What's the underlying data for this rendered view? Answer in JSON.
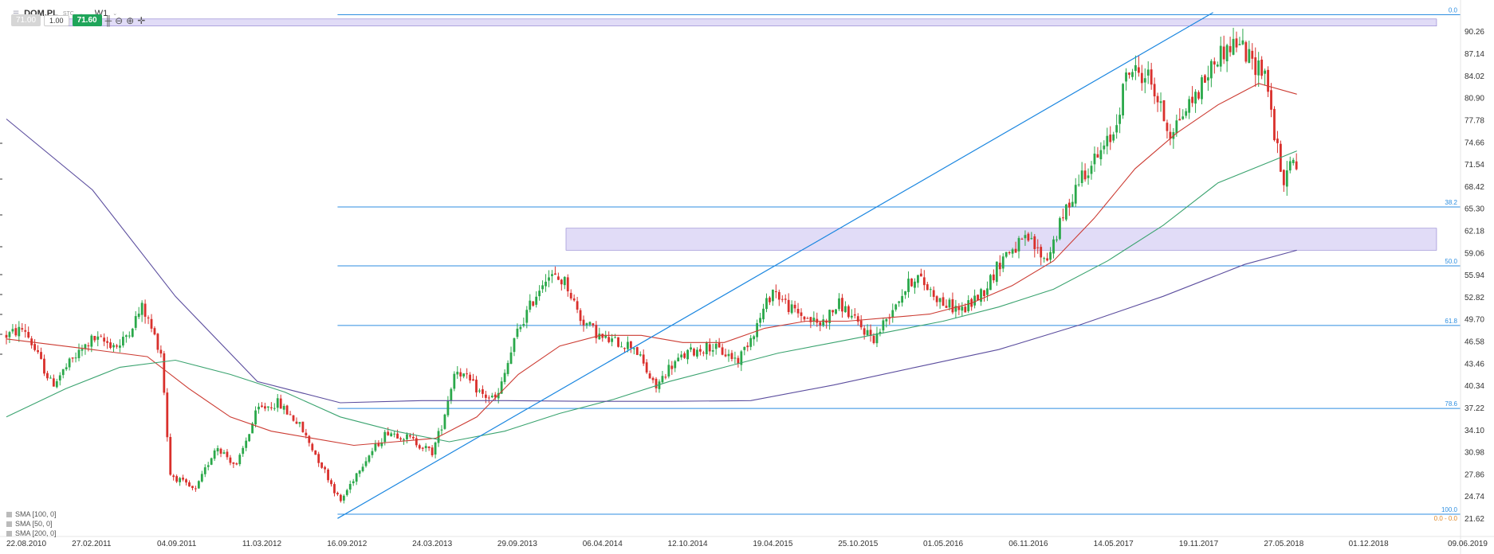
{
  "toolbar": {
    "symbol": "DOM.PL",
    "symbol_sub": "STC",
    "timeframe": "W1",
    "bid": "71.00",
    "quantity": "1.00",
    "ask": "71.60"
  },
  "legend": [
    "SMA [100, 0]",
    "SMA [50, 0]",
    "SMA [200, 0]"
  ],
  "colors": {
    "up": "#2aa84a",
    "down": "#d9302c",
    "sma50": "#cc3b32",
    "sma100": "#3aa36f",
    "sma200": "#5b4d9e",
    "fib": "#2d8ee0",
    "trend": "#1a86e0",
    "zone": "#c9bff0"
  },
  "chart_data": {
    "type": "candlestick",
    "x_range": [
      "2010-08-22",
      "2019-06-09"
    ],
    "x_ticks": [
      "22.08.2010",
      "27.02.2011",
      "04.09.2011",
      "11.03.2012",
      "16.09.2012",
      "24.03.2013",
      "29.09.2013",
      "06.04.2014",
      "12.10.2014",
      "19.04.2015",
      "25.10.2015",
      "01.05.2016",
      "06.11.2016",
      "14.05.2017",
      "19.11.2017",
      "27.05.2018",
      "01.12.2018",
      "09.06.2019"
    ],
    "y_range": [
      20.5,
      93.2
    ],
    "y_ticks": [
      "90.26",
      "87.14",
      "84.02",
      "80.90",
      "77.78",
      "74.66",
      "71.54",
      "68.42",
      "65.30",
      "62.18",
      "59.06",
      "55.94",
      "52.82",
      "49.70",
      "46.58",
      "43.46",
      "40.34",
      "37.22",
      "34.10",
      "30.98",
      "27.86",
      "24.74",
      "21.62"
    ],
    "price_path": [
      [
        "2010-08-22",
        47.5
      ],
      [
        "2010-10-01",
        48.5
      ],
      [
        "2010-12-01",
        40.5
      ],
      [
        "2011-01-15",
        44
      ],
      [
        "2011-03-01",
        47
      ],
      [
        "2011-05-01",
        46
      ],
      [
        "2011-06-20",
        51.5
      ],
      [
        "2011-08-01",
        45
      ],
      [
        "2011-08-20",
        28
      ],
      [
        "2011-10-15",
        25.5
      ],
      [
        "2011-12-01",
        32
      ],
      [
        "2012-01-15",
        29
      ],
      [
        "2012-03-01",
        37
      ],
      [
        "2012-04-15",
        38
      ],
      [
        "2012-06-01",
        35
      ],
      [
        "2012-08-01",
        28
      ],
      [
        "2012-09-01",
        24
      ],
      [
        "2012-10-15",
        29
      ],
      [
        "2012-12-15",
        34
      ],
      [
        "2013-02-01",
        33
      ],
      [
        "2013-03-24",
        31
      ],
      [
        "2013-04-15",
        35
      ],
      [
        "2013-05-15",
        43
      ],
      [
        "2013-07-15",
        39
      ],
      [
        "2013-08-15",
        38.5
      ],
      [
        "2013-09-29",
        48
      ],
      [
        "2013-12-01",
        56
      ],
      [
        "2014-01-15",
        55
      ],
      [
        "2014-02-15",
        50
      ],
      [
        "2014-04-06",
        47
      ],
      [
        "2014-06-15",
        46
      ],
      [
        "2014-08-01",
        40
      ],
      [
        "2014-09-01",
        43
      ],
      [
        "2014-10-12",
        45
      ],
      [
        "2014-12-01",
        46
      ],
      [
        "2015-02-01",
        44
      ],
      [
        "2015-03-15",
        49
      ],
      [
        "2015-04-19",
        54
      ],
      [
        "2015-06-01",
        51
      ],
      [
        "2015-08-01",
        49
      ],
      [
        "2015-09-15",
        52
      ],
      [
        "2015-10-25",
        49
      ],
      [
        "2015-12-01",
        47
      ],
      [
        "2016-01-15",
        52
      ],
      [
        "2016-03-01",
        56
      ],
      [
        "2016-05-01",
        52
      ],
      [
        "2016-06-15",
        51
      ],
      [
        "2016-08-01",
        54
      ],
      [
        "2016-09-15",
        59
      ],
      [
        "2016-11-06",
        61
      ],
      [
        "2016-12-15",
        58
      ],
      [
        "2017-01-15",
        63
      ],
      [
        "2017-03-01",
        70
      ],
      [
        "2017-04-15",
        73
      ],
      [
        "2017-05-14",
        76
      ],
      [
        "2017-06-15",
        85
      ],
      [
        "2017-08-01",
        84
      ],
      [
        "2017-09-15",
        76
      ],
      [
        "2017-11-19",
        82
      ],
      [
        "2018-01-01",
        87
      ],
      [
        "2018-02-15",
        89
      ],
      [
        "2018-03-15",
        86
      ],
      [
        "2018-04-15",
        85
      ],
      [
        "2018-05-01",
        78
      ],
      [
        "2018-05-27",
        68
      ],
      [
        "2018-06-10",
        73
      ],
      [
        "2018-06-25",
        70
      ]
    ],
    "series": [
      {
        "name": "SMA [50, 0]",
        "values": [
          [
            "2010-08-22",
            47
          ],
          [
            "2011-03-01",
            45.5
          ],
          [
            "2011-07-01",
            44.5
          ],
          [
            "2011-10-01",
            40
          ],
          [
            "2012-01-01",
            36
          ],
          [
            "2012-04-01",
            34
          ],
          [
            "2012-07-01",
            33
          ],
          [
            "2012-10-01",
            32
          ],
          [
            "2013-01-01",
            32.5
          ],
          [
            "2013-04-01",
            33
          ],
          [
            "2013-07-01",
            36
          ],
          [
            "2013-10-01",
            42
          ],
          [
            "2014-01-01",
            46
          ],
          [
            "2014-04-01",
            47.5
          ],
          [
            "2014-07-01",
            47.5
          ],
          [
            "2014-10-01",
            46.5
          ],
          [
            "2015-01-01",
            46.5
          ],
          [
            "2015-04-01",
            48.5
          ],
          [
            "2015-07-01",
            49.5
          ],
          [
            "2015-10-01",
            49.5
          ],
          [
            "2016-01-01",
            50
          ],
          [
            "2016-04-01",
            50.5
          ],
          [
            "2016-07-01",
            52
          ],
          [
            "2016-10-01",
            54.5
          ],
          [
            "2017-01-01",
            58
          ],
          [
            "2017-04-01",
            64
          ],
          [
            "2017-07-01",
            71
          ],
          [
            "2017-10-01",
            76
          ],
          [
            "2018-01-01",
            80
          ],
          [
            "2018-04-01",
            83
          ],
          [
            "2018-06-25",
            81.5
          ]
        ]
      },
      {
        "name": "SMA [100, 0]",
        "values": [
          [
            "2010-08-22",
            36
          ],
          [
            "2011-01-01",
            40
          ],
          [
            "2011-05-01",
            43
          ],
          [
            "2011-09-01",
            44
          ],
          [
            "2012-01-01",
            42
          ],
          [
            "2012-05-01",
            39.5
          ],
          [
            "2012-09-01",
            36
          ],
          [
            "2013-01-01",
            34
          ],
          [
            "2013-05-01",
            32.5
          ],
          [
            "2013-09-01",
            34
          ],
          [
            "2014-01-01",
            36.5
          ],
          [
            "2014-05-01",
            38.5
          ],
          [
            "2014-09-01",
            41
          ],
          [
            "2015-01-01",
            43
          ],
          [
            "2015-05-01",
            45
          ],
          [
            "2015-09-01",
            46.5
          ],
          [
            "2016-01-01",
            48
          ],
          [
            "2016-05-01",
            49.5
          ],
          [
            "2016-09-01",
            51.5
          ],
          [
            "2017-01-01",
            54
          ],
          [
            "2017-05-01",
            58
          ],
          [
            "2017-09-01",
            63
          ],
          [
            "2018-01-01",
            69
          ],
          [
            "2018-06-25",
            73.5
          ]
        ]
      },
      {
        "name": "SMA [200, 0]",
        "values": [
          [
            "2010-08-22",
            78
          ],
          [
            "2011-03-01",
            68
          ],
          [
            "2011-09-01",
            53
          ],
          [
            "2012-03-01",
            41
          ],
          [
            "2012-09-01",
            38
          ],
          [
            "2013-03-01",
            38.3
          ],
          [
            "2013-09-01",
            38.3
          ],
          [
            "2014-03-01",
            38.2
          ],
          [
            "2014-09-01",
            38.2
          ],
          [
            "2015-03-01",
            38.3
          ],
          [
            "2015-09-01",
            40.5
          ],
          [
            "2016-03-01",
            43
          ],
          [
            "2016-09-01",
            45.5
          ],
          [
            "2017-03-01",
            49
          ],
          [
            "2017-09-01",
            53
          ],
          [
            "2018-03-01",
            57.5
          ],
          [
            "2018-06-25",
            59.5
          ]
        ]
      }
    ],
    "trendline": [
      [
        "2012-08-26",
        21.7
      ],
      [
        "2017-12-21",
        93.0
      ]
    ],
    "fib_lines": [
      {
        "label": "0.0",
        "value": 92.7,
        "start": "2012-08-26"
      },
      {
        "label": "38.2",
        "value": 65.6,
        "start": "2012-08-26"
      },
      {
        "label": "50.0",
        "value": 57.3,
        "start": "2012-08-26"
      },
      {
        "label": "61.8",
        "value": 48.9,
        "start": "2012-08-26"
      },
      {
        "label": "78.6",
        "value": 37.2,
        "start": "2012-08-26"
      },
      {
        "label": "100.0",
        "value": 22.3,
        "start": "2012-08-26"
      }
    ],
    "bottom_tag": "0.0 - 0.0",
    "zones": [
      {
        "from": "2010-11-20",
        "to": "2019-05-01",
        "low": 91.1,
        "high": 92.1
      },
      {
        "from": "2014-01-15",
        "to": "2019-05-01",
        "low": 59.5,
        "high": 62.6
      }
    ]
  }
}
